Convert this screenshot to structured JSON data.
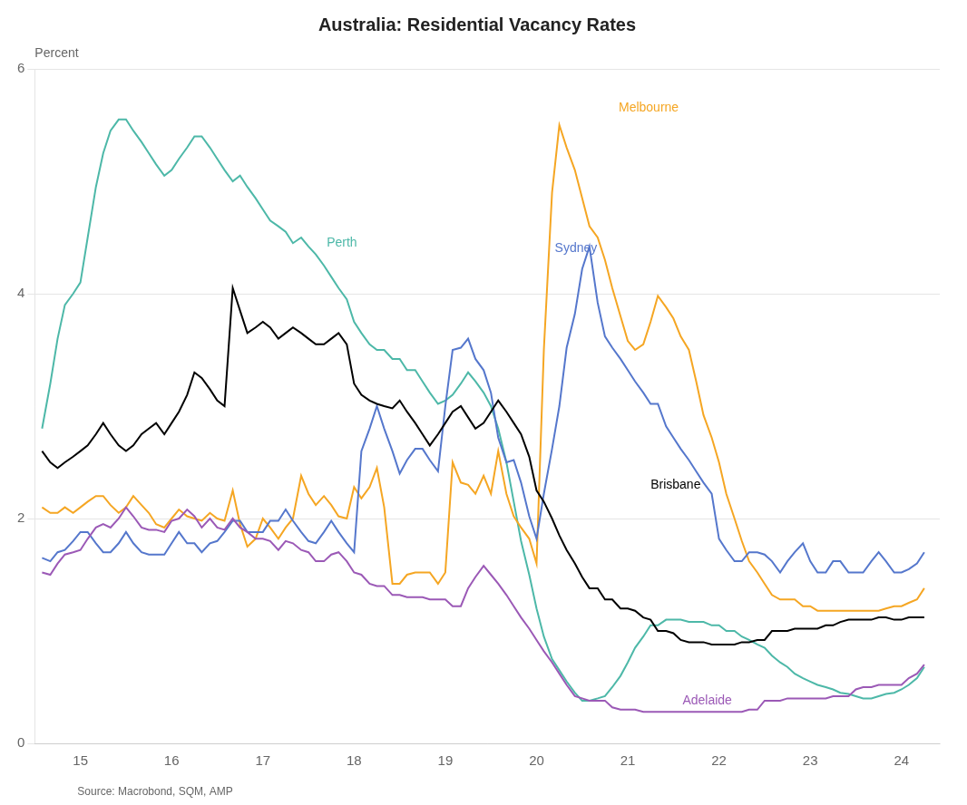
{
  "chart_data": {
    "type": "line",
    "title": "Australia: Residential Vacancy Rates",
    "ylabel": "Percent",
    "source": "Source: Macrobond, SQM, AMP",
    "xlim": [
      14.5,
      24.42
    ],
    "xticks": [
      15,
      16,
      17,
      18,
      19,
      20,
      21,
      22,
      23,
      24
    ],
    "ylim": [
      0,
      6
    ],
    "yticks": [
      0,
      2,
      4,
      6
    ],
    "grid": "y",
    "x": [
      14.58,
      14.67,
      14.75,
      14.83,
      14.92,
      15.0,
      15.08,
      15.17,
      15.25,
      15.33,
      15.42,
      15.5,
      15.58,
      15.67,
      15.75,
      15.83,
      15.92,
      16.0,
      16.08,
      16.17,
      16.25,
      16.33,
      16.42,
      16.5,
      16.58,
      16.67,
      16.75,
      16.83,
      16.92,
      17.0,
      17.08,
      17.17,
      17.25,
      17.33,
      17.42,
      17.5,
      17.58,
      17.67,
      17.75,
      17.83,
      17.92,
      18.0,
      18.08,
      18.17,
      18.25,
      18.33,
      18.42,
      18.5,
      18.58,
      18.67,
      18.75,
      18.83,
      18.92,
      19.0,
      19.08,
      19.17,
      19.25,
      19.33,
      19.42,
      19.5,
      19.58,
      19.67,
      19.75,
      19.83,
      19.92,
      20.0,
      20.08,
      20.17,
      20.25,
      20.33,
      20.42,
      20.5,
      20.58,
      20.67,
      20.75,
      20.83,
      20.92,
      21.0,
      21.08,
      21.17,
      21.25,
      21.33,
      21.42,
      21.5,
      21.58,
      21.67,
      21.75,
      21.83,
      21.92,
      22.0,
      22.08,
      22.17,
      22.25,
      22.33,
      22.42,
      22.5,
      22.58,
      22.67,
      22.75,
      22.83,
      22.92,
      23.0,
      23.08,
      23.17,
      23.25,
      23.33,
      23.42,
      23.5,
      23.58,
      23.67,
      23.75,
      23.83,
      23.92,
      24.0,
      24.08,
      24.17,
      24.25
    ],
    "series": [
      {
        "name": "Perth",
        "color": "#4db8a8",
        "values": [
          2.8,
          3.2,
          3.6,
          3.9,
          4.0,
          4.1,
          4.5,
          4.95,
          5.25,
          5.45,
          5.55,
          5.55,
          5.45,
          5.35,
          5.25,
          5.15,
          5.05,
          5.1,
          5.2,
          5.3,
          5.4,
          5.4,
          5.3,
          5.2,
          5.1,
          5.0,
          5.05,
          4.95,
          4.85,
          4.75,
          4.65,
          4.6,
          4.55,
          4.45,
          4.5,
          4.42,
          4.35,
          4.25,
          4.15,
          4.05,
          3.95,
          3.75,
          3.65,
          3.55,
          3.5,
          3.5,
          3.42,
          3.42,
          3.32,
          3.32,
          3.22,
          3.12,
          3.02,
          3.05,
          3.1,
          3.2,
          3.3,
          3.22,
          3.12,
          3.0,
          2.8,
          2.5,
          2.15,
          1.8,
          1.5,
          1.2,
          0.95,
          0.75,
          0.65,
          0.55,
          0.45,
          0.38,
          0.38,
          0.4,
          0.42,
          0.5,
          0.6,
          0.72,
          0.85,
          0.95,
          1.05,
          1.05,
          1.1,
          1.1,
          1.1,
          1.08,
          1.08,
          1.08,
          1.05,
          1.05,
          1.0,
          1.0,
          0.95,
          0.92,
          0.88,
          0.85,
          0.78,
          0.72,
          0.68,
          0.62,
          0.58,
          0.55,
          0.52,
          0.5,
          0.48,
          0.45,
          0.44,
          0.42,
          0.4,
          0.4,
          0.42,
          0.44,
          0.45,
          0.48,
          0.52,
          0.58,
          0.68
        ]
      },
      {
        "name": "Melbourne",
        "color": "#f5a623",
        "values": [
          2.1,
          2.05,
          2.05,
          2.1,
          2.05,
          2.1,
          2.15,
          2.2,
          2.2,
          2.12,
          2.05,
          2.1,
          2.2,
          2.12,
          2.05,
          1.95,
          1.92,
          2.0,
          2.08,
          2.02,
          2.0,
          1.98,
          2.05,
          2.0,
          1.98,
          2.25,
          1.95,
          1.75,
          1.82,
          2.0,
          1.92,
          1.82,
          1.92,
          2.0,
          2.38,
          2.22,
          2.12,
          2.2,
          2.12,
          2.02,
          2.0,
          2.28,
          2.18,
          2.28,
          2.45,
          2.1,
          1.42,
          1.42,
          1.5,
          1.52,
          1.52,
          1.52,
          1.42,
          1.52,
          2.5,
          2.32,
          2.3,
          2.22,
          2.38,
          2.22,
          2.6,
          2.22,
          2.02,
          1.92,
          1.82,
          1.6,
          3.5,
          4.9,
          5.5,
          5.3,
          5.1,
          4.85,
          4.6,
          4.5,
          4.3,
          4.05,
          3.8,
          3.58,
          3.5,
          3.55,
          3.75,
          3.98,
          3.88,
          3.78,
          3.62,
          3.5,
          3.22,
          2.92,
          2.72,
          2.5,
          2.22,
          2.0,
          1.8,
          1.62,
          1.52,
          1.42,
          1.32,
          1.28,
          1.28,
          1.28,
          1.22,
          1.22,
          1.18,
          1.18,
          1.18,
          1.18,
          1.18,
          1.18,
          1.18,
          1.18,
          1.18,
          1.2,
          1.22,
          1.22,
          1.25,
          1.28,
          1.38
        ]
      },
      {
        "name": "Sydney",
        "color": "#5577cc",
        "values": [
          1.65,
          1.62,
          1.7,
          1.72,
          1.8,
          1.88,
          1.88,
          1.78,
          1.7,
          1.7,
          1.78,
          1.88,
          1.78,
          1.7,
          1.68,
          1.68,
          1.68,
          1.78,
          1.88,
          1.78,
          1.78,
          1.7,
          1.78,
          1.8,
          1.88,
          1.98,
          1.98,
          1.88,
          1.88,
          1.88,
          1.98,
          1.98,
          2.08,
          1.98,
          1.88,
          1.8,
          1.78,
          1.88,
          1.98,
          1.88,
          1.78,
          1.7,
          2.6,
          2.8,
          3.0,
          2.8,
          2.6,
          2.4,
          2.52,
          2.62,
          2.62,
          2.52,
          2.42,
          3.0,
          3.5,
          3.52,
          3.6,
          3.42,
          3.32,
          3.12,
          2.72,
          2.5,
          2.52,
          2.32,
          2.02,
          1.82,
          2.22,
          2.62,
          3.0,
          3.52,
          3.82,
          4.22,
          4.42,
          3.92,
          3.62,
          3.52,
          3.42,
          3.32,
          3.22,
          3.12,
          3.02,
          3.02,
          2.82,
          2.72,
          2.62,
          2.52,
          2.42,
          2.32,
          2.22,
          1.82,
          1.72,
          1.62,
          1.62,
          1.7,
          1.7,
          1.68,
          1.62,
          1.52,
          1.62,
          1.7,
          1.78,
          1.62,
          1.52,
          1.52,
          1.62,
          1.62,
          1.52,
          1.52,
          1.52,
          1.62,
          1.7,
          1.62,
          1.52,
          1.52,
          1.55,
          1.6,
          1.7
        ]
      },
      {
        "name": "Adelaide",
        "color": "#9b59b6",
        "values": [
          1.52,
          1.5,
          1.6,
          1.68,
          1.7,
          1.72,
          1.82,
          1.92,
          1.95,
          1.92,
          2.0,
          2.1,
          2.02,
          1.92,
          1.9,
          1.9,
          1.88,
          1.98,
          2.0,
          2.08,
          2.02,
          1.92,
          2.0,
          1.92,
          1.9,
          2.0,
          1.92,
          1.88,
          1.82,
          1.82,
          1.8,
          1.72,
          1.8,
          1.78,
          1.72,
          1.7,
          1.62,
          1.62,
          1.68,
          1.7,
          1.62,
          1.52,
          1.5,
          1.42,
          1.4,
          1.4,
          1.32,
          1.32,
          1.3,
          1.3,
          1.3,
          1.28,
          1.28,
          1.28,
          1.22,
          1.22,
          1.38,
          1.48,
          1.58,
          1.5,
          1.42,
          1.32,
          1.22,
          1.12,
          1.02,
          0.92,
          0.82,
          0.72,
          0.62,
          0.52,
          0.42,
          0.4,
          0.38,
          0.38,
          0.38,
          0.32,
          0.3,
          0.3,
          0.3,
          0.28,
          0.28,
          0.28,
          0.28,
          0.28,
          0.28,
          0.28,
          0.28,
          0.28,
          0.28,
          0.28,
          0.28,
          0.28,
          0.28,
          0.3,
          0.3,
          0.38,
          0.38,
          0.38,
          0.4,
          0.4,
          0.4,
          0.4,
          0.4,
          0.4,
          0.42,
          0.42,
          0.42,
          0.48,
          0.5,
          0.5,
          0.52,
          0.52,
          0.52,
          0.52,
          0.58,
          0.62,
          0.7
        ]
      },
      {
        "name": "Brisbane",
        "color": "#000000",
        "values": [
          2.6,
          2.5,
          2.45,
          2.5,
          2.55,
          2.6,
          2.65,
          2.75,
          2.85,
          2.75,
          2.65,
          2.6,
          2.65,
          2.75,
          2.8,
          2.85,
          2.75,
          2.85,
          2.95,
          3.1,
          3.3,
          3.25,
          3.15,
          3.05,
          3.0,
          4.05,
          3.85,
          3.65,
          3.7,
          3.75,
          3.7,
          3.6,
          3.65,
          3.7,
          3.65,
          3.6,
          3.55,
          3.55,
          3.6,
          3.65,
          3.55,
          3.2,
          3.1,
          3.05,
          3.02,
          3.0,
          2.98,
          3.05,
          2.95,
          2.85,
          2.75,
          2.65,
          2.75,
          2.85,
          2.95,
          3.0,
          2.9,
          2.8,
          2.85,
          2.95,
          3.05,
          2.95,
          2.85,
          2.75,
          2.55,
          2.25,
          2.15,
          2.0,
          1.85,
          1.72,
          1.6,
          1.48,
          1.38,
          1.38,
          1.28,
          1.28,
          1.2,
          1.2,
          1.18,
          1.12,
          1.1,
          1.0,
          1.0,
          0.98,
          0.92,
          0.9,
          0.9,
          0.9,
          0.88,
          0.88,
          0.88,
          0.88,
          0.9,
          0.9,
          0.92,
          0.92,
          1.0,
          1.0,
          1.0,
          1.02,
          1.02,
          1.02,
          1.02,
          1.05,
          1.05,
          1.08,
          1.1,
          1.1,
          1.1,
          1.1,
          1.12,
          1.12,
          1.1,
          1.1,
          1.12,
          1.12,
          1.12
        ]
      }
    ],
    "annotations": [
      {
        "text": "Perth",
        "x": 17.7,
        "y": 4.45,
        "color": "#4db8a8"
      },
      {
        "text": "Brisbane",
        "x": 21.25,
        "y": 2.3,
        "color": "#000000"
      },
      {
        "text": "Melbourne",
        "x": 20.9,
        "y": 5.65,
        "color": "#f5a623"
      },
      {
        "text": "Sydney",
        "x": 20.2,
        "y": 4.4,
        "color": "#5577cc"
      },
      {
        "text": "Adelaide",
        "x": 21.6,
        "y": 0.38,
        "color": "#9b59b6"
      }
    ]
  }
}
